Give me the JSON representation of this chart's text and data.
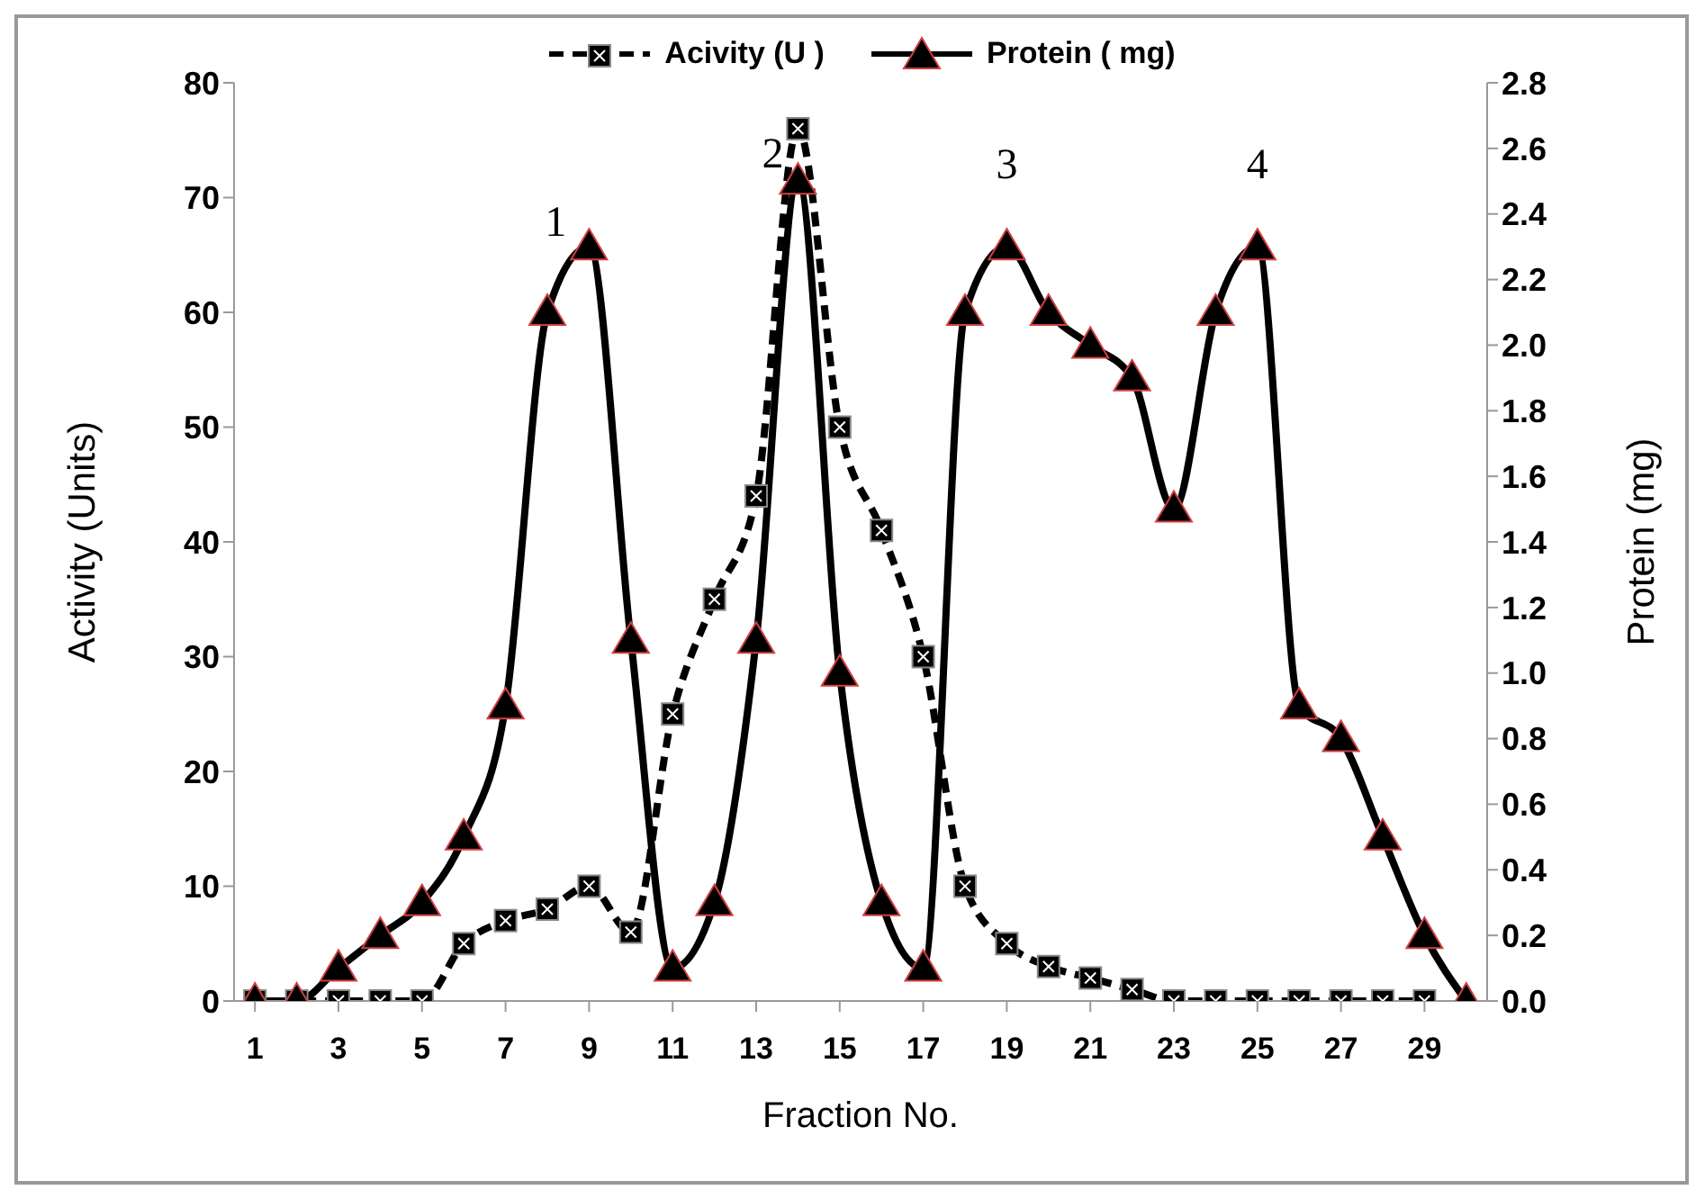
{
  "chart_data": {
    "type": "line",
    "xlabel": "Fraction No.",
    "ylabel": "Activity (Units)",
    "y2label": "Protein (mg)",
    "x": [
      1,
      2,
      3,
      4,
      5,
      6,
      7,
      8,
      9,
      10,
      11,
      12,
      13,
      14,
      15,
      16,
      17,
      18,
      19,
      20,
      21,
      22,
      23,
      24,
      25,
      26,
      27,
      28,
      29,
      30
    ],
    "xlim": [
      0.5,
      30.5
    ],
    "xticks": [
      1,
      3,
      5,
      7,
      9,
      11,
      13,
      15,
      17,
      19,
      21,
      23,
      25,
      27,
      29
    ],
    "series": [
      {
        "name": "Acivity (U )",
        "color": "#000000",
        "marker": "square",
        "line_style": "dashed",
        "values": [
          0,
          0,
          0,
          0,
          0,
          5,
          7,
          8,
          10,
          6,
          25,
          35,
          44,
          76,
          50,
          41,
          30,
          10,
          5,
          3,
          2,
          1,
          0,
          0,
          0,
          0,
          0,
          0,
          0,
          null
        ]
      },
      {
        "name": "Protein ( mg)",
        "color": "#000000",
        "marker": "triangle",
        "line_style": "solid",
        "axis": "y2",
        "values": [
          0,
          0,
          0.1,
          0.2,
          0.3,
          0.5,
          0.9,
          2.1,
          2.3,
          1.1,
          0.1,
          0.3,
          1.1,
          2.5,
          1.0,
          0.3,
          0.1,
          2.1,
          2.3,
          2.1,
          2.0,
          1.9,
          1.5,
          2.1,
          2.3,
          0.9,
          0.8,
          0.5,
          0.2,
          0
        ]
      }
    ],
    "ylim": [
      0,
      80
    ],
    "yticks": [
      0,
      10,
      20,
      30,
      40,
      50,
      60,
      70,
      80
    ],
    "y2lim": [
      0,
      2.8
    ],
    "y2ticks": [
      {
        "value": 0,
        "label": "0.0"
      },
      {
        "value": 0.2,
        "label": "0.2"
      },
      {
        "value": 0.4,
        "label": "0.4"
      },
      {
        "value": 0.6,
        "label": "0.6"
      },
      {
        "value": 0.8,
        "label": "0.8"
      },
      {
        "value": 1,
        "label": "1.0"
      },
      {
        "value": 1.2,
        "label": "1.2"
      },
      {
        "value": 1.4,
        "label": "1.4"
      },
      {
        "value": 1.6,
        "label": "1.6"
      },
      {
        "value": 1.8,
        "label": "1.8"
      },
      {
        "value": 2,
        "label": "2.0"
      },
      {
        "value": 2.2,
        "label": "2.2"
      },
      {
        "value": 2.4,
        "label": "2.4"
      },
      {
        "value": 2.6,
        "label": "2.6"
      },
      {
        "value": 2.8,
        "label": "2.8"
      }
    ],
    "annotations": [
      "1",
      "2",
      "3",
      "4"
    ],
    "legend": "top",
    "grid": false
  }
}
